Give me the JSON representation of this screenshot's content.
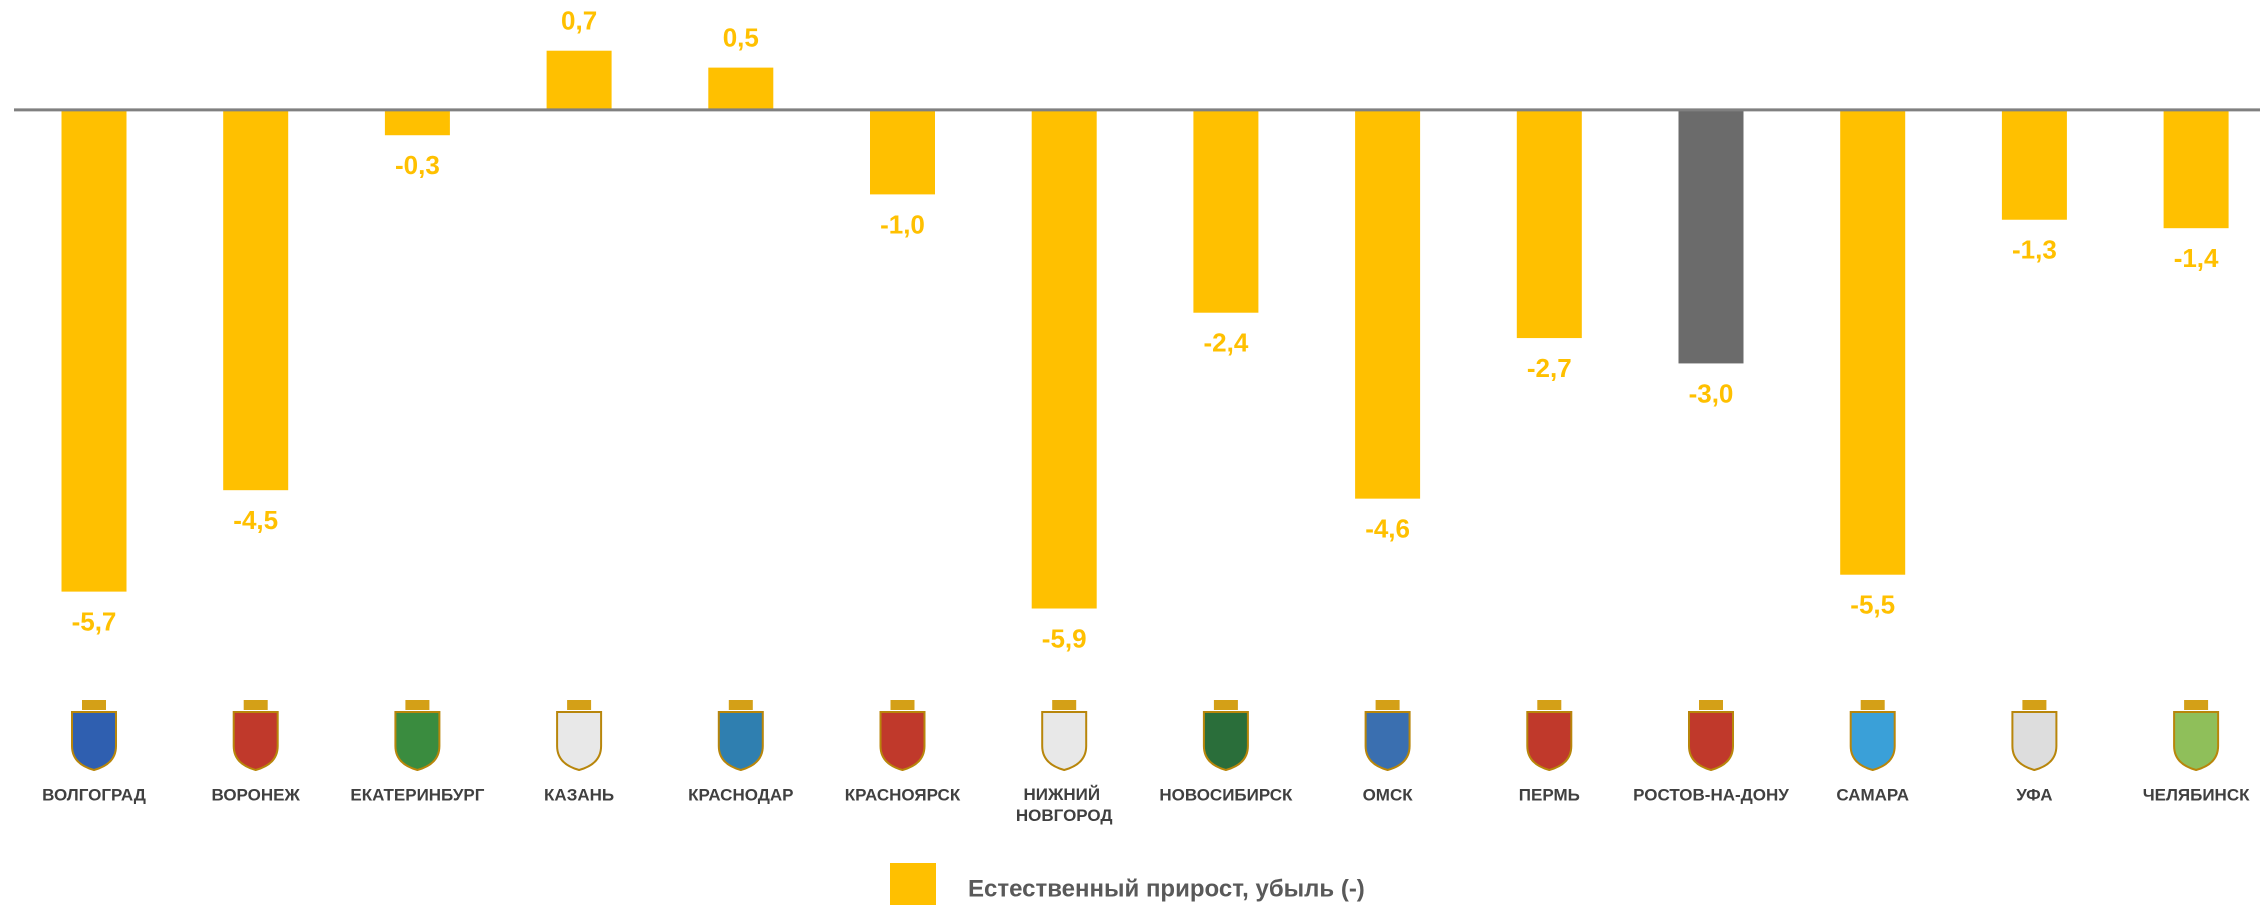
{
  "chart_data": {
    "type": "bar",
    "categories": [
      "ВОЛГОГРАД",
      "ВОРОНЕЖ",
      "ЕКАТЕРИНБУРГ",
      "КАЗАНЬ",
      "КРАСНОДАР",
      "КРАСНОЯРСК",
      "НИЖНИЙ НОВГОРОД",
      "НОВОСИБИРСК",
      "ОМСК",
      "ПЕРМЬ",
      "РОСТОВ-НА-ДОНУ",
      "САМАРА",
      "УФА",
      "ЧЕЛЯБИНСК"
    ],
    "series": [
      {
        "name": "Естественный прирост, убыль (-)",
        "color": "#FFC000",
        "colors": [
          "#FFC000",
          "#FFC000",
          "#FFC000",
          "#FFC000",
          "#FFC000",
          "#FFC000",
          "#FFC000",
          "#FFC000",
          "#FFC000",
          "#FFC000",
          "#6B6B6B",
          "#FFC000",
          "#FFC000",
          "#FFC000"
        ],
        "values": [
          -5.7,
          -4.5,
          -0.3,
          0.7,
          0.5,
          -1.0,
          -5.9,
          -2.4,
          -4.6,
          -2.7,
          -3.0,
          -5.5,
          -1.3,
          -1.4
        ],
        "value_labels": [
          "-5,7",
          "-4,5",
          "-0,3",
          "0,7",
          "0,5",
          "-1,0",
          "-5,9",
          "-2,4",
          "-4,6",
          "-2,7",
          "-3,0",
          "-5,5",
          "-1,3",
          "-1,4"
        ]
      }
    ],
    "ylim": [
      -8,
      1.3
    ]
  }
}
